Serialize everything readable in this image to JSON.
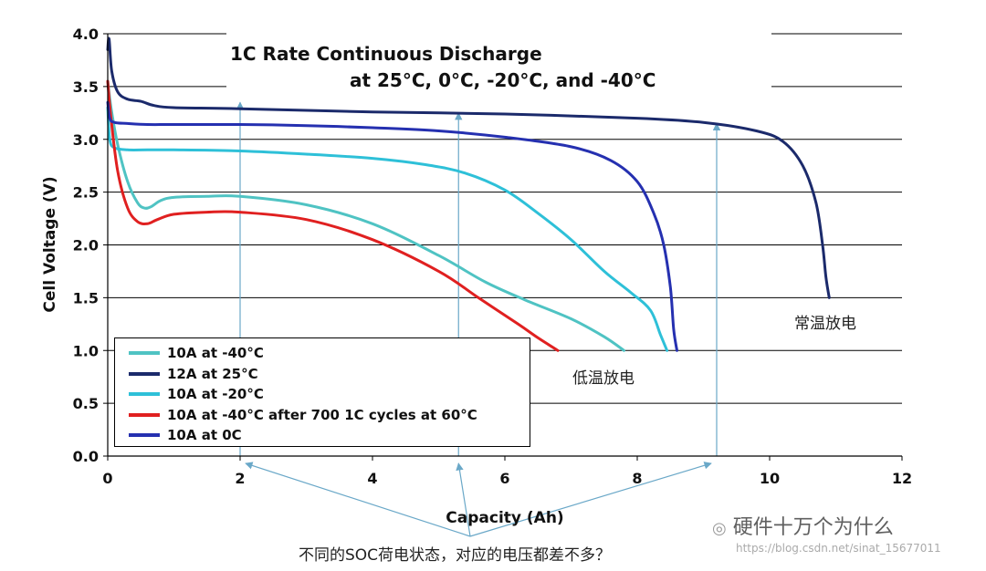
{
  "chart_data": {
    "type": "line",
    "title_line1": "1C Rate Continuous Discharge",
    "title_line2": "at 25°C, 0°C, -20°C, and -40°C",
    "xlabel": "Capacity (Ah)",
    "ylabel": "Cell Voltage (V)",
    "xlim": [
      0,
      12
    ],
    "ylim": [
      0.0,
      4.0
    ],
    "x_ticks": [
      "0",
      "2",
      "4",
      "6",
      "8",
      "10",
      "12"
    ],
    "y_ticks": [
      "0.0",
      "0.5",
      "1.0",
      "1.5",
      "2.0",
      "2.5",
      "3.0",
      "3.5",
      "4.0"
    ],
    "grid": "horizontal",
    "legend_position": "bottom-left",
    "series": [
      {
        "name": "10A at -40°C",
        "color": "#4fc3c3",
        "x": [
          0,
          0.05,
          0.15,
          0.3,
          0.45,
          0.55,
          0.65,
          0.8,
          1.0,
          1.5,
          2.0,
          3.0,
          4.0,
          5.0,
          5.7,
          6.3,
          7.0,
          7.5,
          7.8
        ],
        "y": [
          3.55,
          3.3,
          2.95,
          2.6,
          2.4,
          2.35,
          2.36,
          2.42,
          2.45,
          2.46,
          2.46,
          2.38,
          2.2,
          1.9,
          1.65,
          1.48,
          1.3,
          1.13,
          1.0
        ]
      },
      {
        "name": "12A at 25°C",
        "color": "#1b2a6b",
        "x": [
          0,
          0.02,
          0.06,
          0.15,
          0.3,
          0.5,
          0.7,
          1.0,
          2.0,
          4.0,
          6.0,
          8.0,
          9.0,
          9.8,
          10.2,
          10.5,
          10.7,
          10.8,
          10.85,
          10.9
        ],
        "y": [
          3.85,
          3.95,
          3.65,
          3.45,
          3.38,
          3.36,
          3.32,
          3.3,
          3.29,
          3.26,
          3.24,
          3.2,
          3.16,
          3.08,
          2.98,
          2.75,
          2.4,
          2.0,
          1.7,
          1.5
        ]
      },
      {
        "name": "10A at -20°C",
        "color": "#2ec0d8",
        "x": [
          0,
          0.03,
          0.1,
          0.3,
          0.6,
          1.0,
          2.0,
          3.0,
          4.0,
          4.8,
          5.4,
          6.0,
          6.5,
          7.0,
          7.5,
          7.9,
          8.2,
          8.35,
          8.45
        ],
        "y": [
          3.3,
          3.0,
          2.92,
          2.9,
          2.9,
          2.9,
          2.89,
          2.86,
          2.82,
          2.76,
          2.68,
          2.52,
          2.3,
          2.05,
          1.75,
          1.55,
          1.38,
          1.15,
          1.0
        ]
      },
      {
        "name": "10A at -40°C after 700 1C cycles at 60°C",
        "color": "#e02020",
        "x": [
          0,
          0.05,
          0.15,
          0.3,
          0.45,
          0.6,
          0.75,
          1.0,
          1.5,
          2.0,
          3.0,
          4.0,
          5.0,
          5.6,
          6.2,
          6.5,
          6.8
        ],
        "y": [
          3.55,
          3.2,
          2.7,
          2.35,
          2.22,
          2.2,
          2.24,
          2.29,
          2.31,
          2.31,
          2.24,
          2.05,
          1.75,
          1.5,
          1.25,
          1.12,
          1.0
        ]
      },
      {
        "name": "10A at 0C",
        "color": "#2530b0",
        "x": [
          0,
          0.03,
          0.1,
          0.3,
          0.6,
          1.0,
          2.0,
          3.0,
          4.0,
          5.0,
          6.0,
          7.0,
          7.6,
          8.0,
          8.25,
          8.4,
          8.5,
          8.55,
          8.6
        ],
        "y": [
          3.35,
          3.2,
          3.16,
          3.15,
          3.14,
          3.14,
          3.14,
          3.13,
          3.11,
          3.08,
          3.02,
          2.93,
          2.8,
          2.6,
          2.3,
          2.0,
          1.6,
          1.2,
          1.0
        ]
      }
    ],
    "arrow_x_positions": [
      2.0,
      5.3,
      9.2
    ],
    "annotations": {
      "room_temp": "常温放电",
      "low_temp": "低温放电",
      "caption": "不同的SOC荷电状态，对应的电压都差不多？"
    }
  },
  "watermark": {
    "main": "硬件十万个为什么",
    "url": "https://blog.csdn.net/sinat_15677011"
  }
}
